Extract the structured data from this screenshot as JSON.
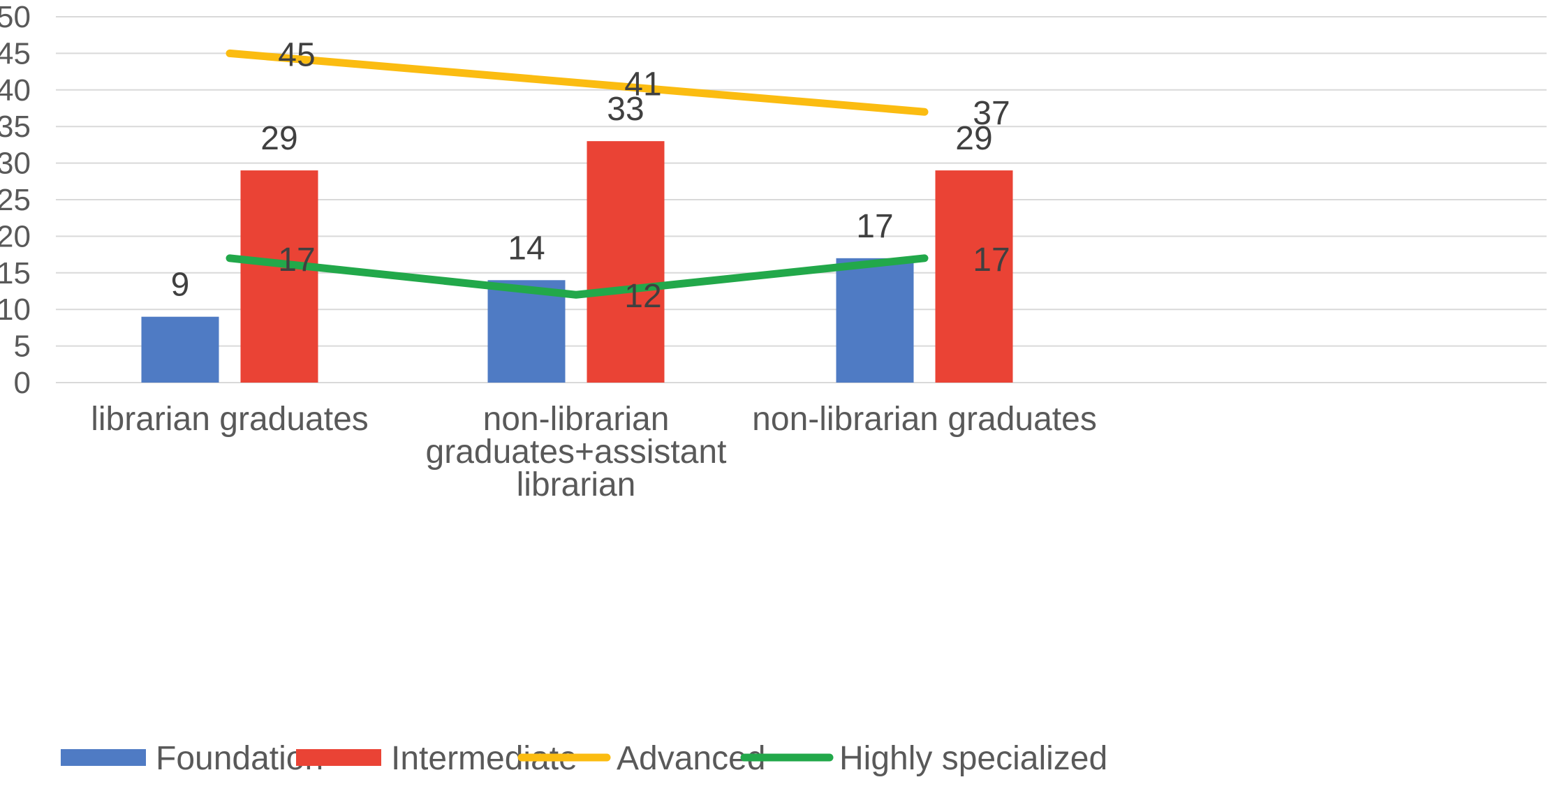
{
  "chart_data": {
    "type": "bar",
    "categories": [
      [
        "librarian graduates"
      ],
      [
        "non-librarian",
        "graduates+assistant",
        "librarian"
      ],
      [
        "non-librarian graduates"
      ]
    ],
    "series": [
      {
        "name": "Foundation",
        "kind": "bar",
        "color": "#4f7bc4",
        "values": [
          9,
          14,
          17
        ]
      },
      {
        "name": "Intermediate",
        "kind": "bar",
        "color": "#ea4335",
        "values": [
          29,
          33,
          29
        ]
      },
      {
        "name": "Advanced",
        "kind": "line",
        "color": "#fbbc11",
        "values": [
          45,
          41,
          37
        ]
      },
      {
        "name": "Highly specialized",
        "kind": "line",
        "color": "#22a84a",
        "values": [
          17,
          12,
          17
        ]
      }
    ],
    "ylim": [
      0,
      50
    ],
    "yticks": [
      0,
      5,
      10,
      15,
      20,
      25,
      30,
      35,
      40,
      45,
      50
    ],
    "grid": true,
    "legend": "bottom",
    "data_labels": true
  }
}
